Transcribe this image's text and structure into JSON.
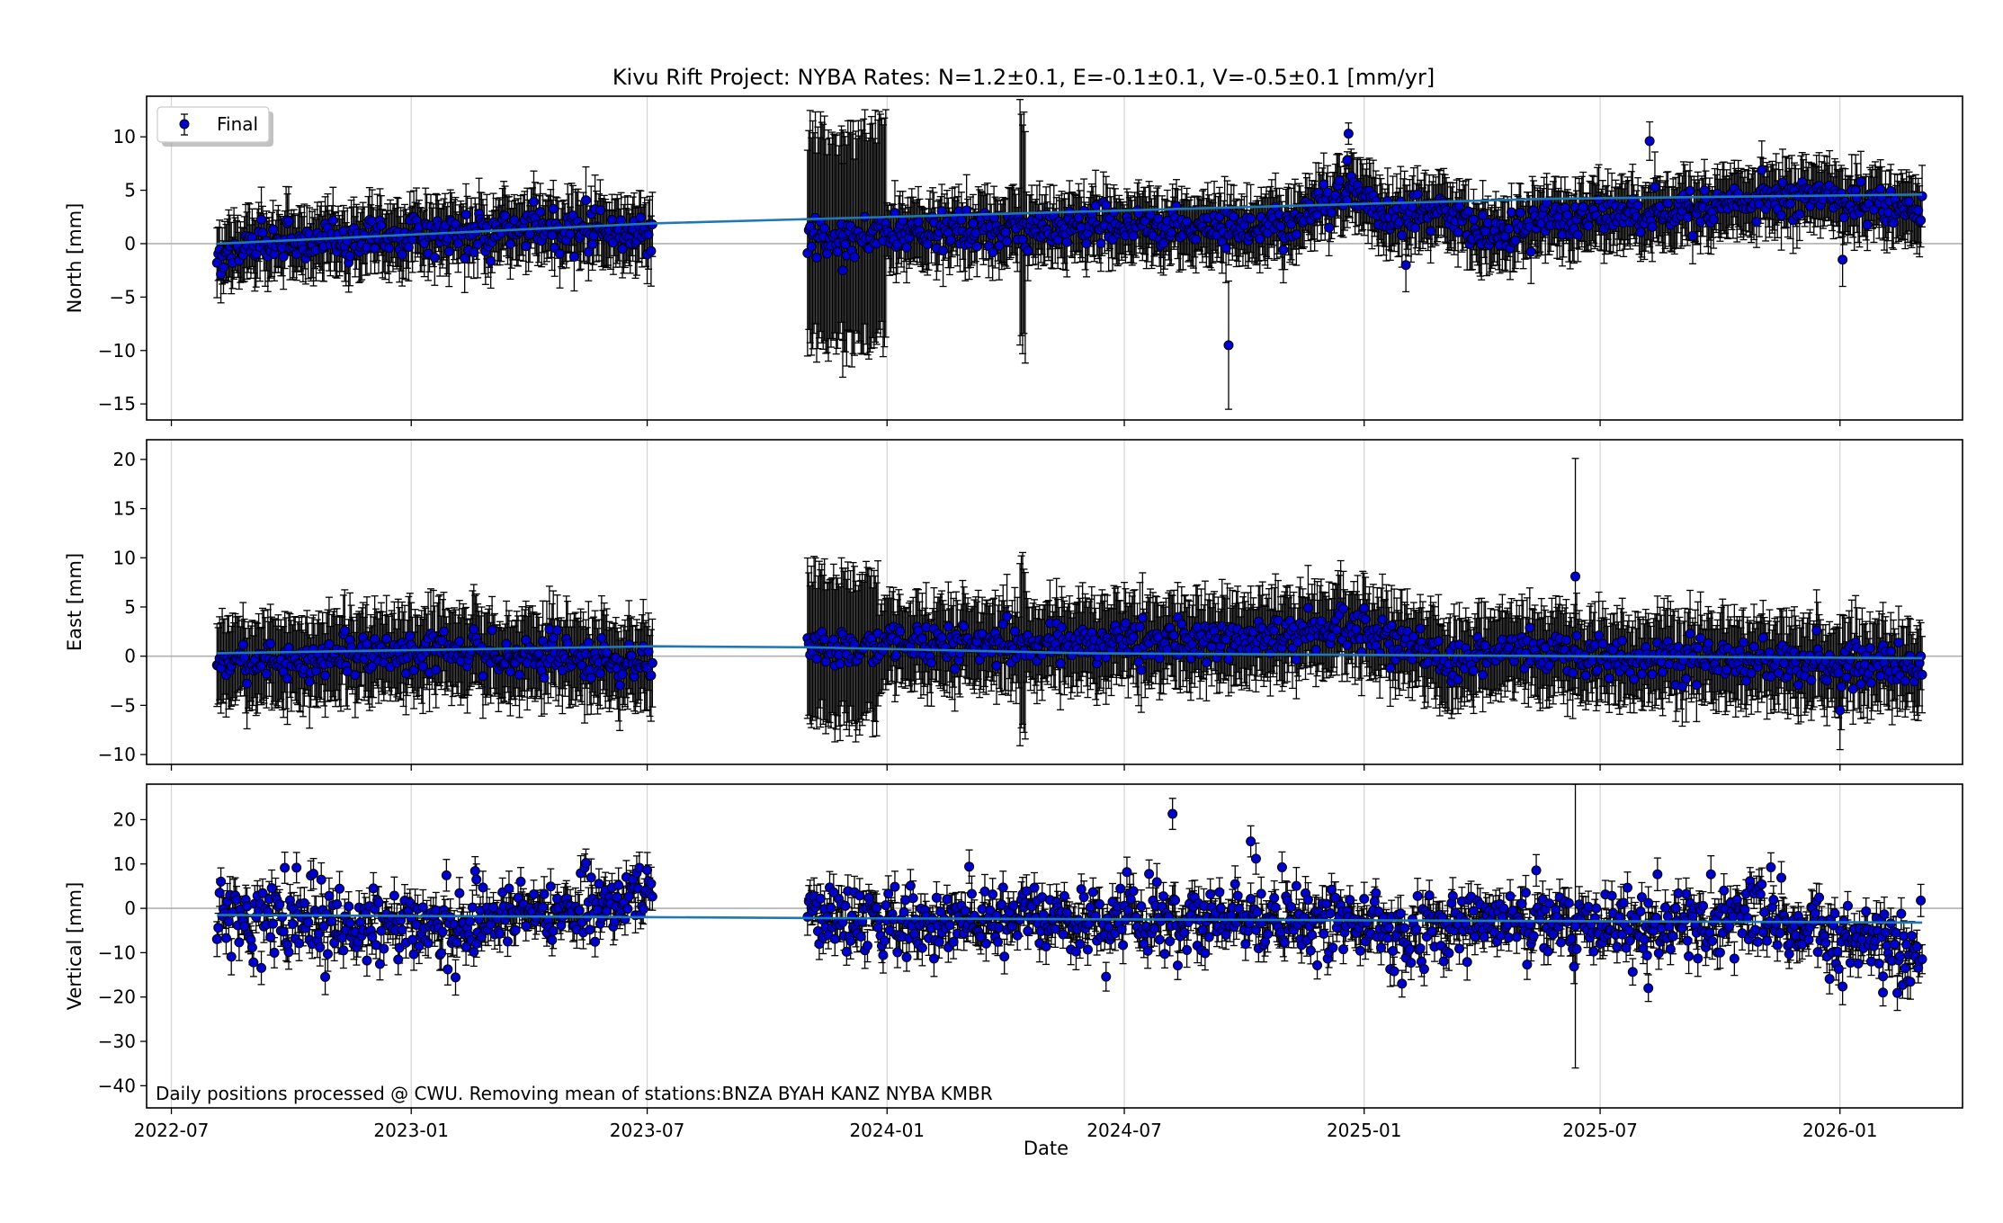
{
  "chart_data": {
    "type": "scatter",
    "title": "Kivu Rift Project: NYBA  Rates: N=1.2±0.1, E=-0.1±0.1, V=-0.5±0.1 [mm/yr]",
    "xlabel": "Date",
    "x_ticks": [
      "2022-07",
      "2023-01",
      "2023-07",
      "2024-01",
      "2024-07",
      "2025-01",
      "2025-07",
      "2026-01"
    ],
    "xlim": [
      "2022-06-12",
      "2026-04-05"
    ],
    "grid": true,
    "legend": {
      "position": "top-left",
      "entries": [
        "Final"
      ]
    },
    "footnote": "Daily positions processed @ CWU. Removing mean of stations:BNZA BYAH KANZ NYBA KMBR",
    "colors": {
      "marker_fill": "#0000cc",
      "marker_edge": "#000000",
      "error_bar": "#000000",
      "fit_line": "#1f77b4",
      "zero_line": "#b0b0b0",
      "grid": "#d3d3d3"
    },
    "segments": [
      {
        "start": "2022-08-05",
        "end": "2023-07-05"
      },
      {
        "start": "2023-11-01",
        "end": "2026-03-05"
      }
    ],
    "panels": [
      {
        "name": "north",
        "ylabel": "North [mm]",
        "ylim": [
          -16.5,
          13.8
        ],
        "yticks": [
          -15,
          -10,
          -5,
          0,
          5,
          10
        ],
        "series": [
          {
            "name": "Final",
            "anchors": [
              [
                "2022-08-05",
                -1.2
              ],
              [
                "2022-09-15",
                0.3
              ],
              [
                "2022-12-01",
                0.6
              ],
              [
                "2023-03-01",
                1.2
              ],
              [
                "2023-05-01",
                1.4
              ],
              [
                "2023-07-05",
                0.8
              ],
              [
                "2023-11-01",
                0.5
              ],
              [
                "2024-01-01",
                0.9
              ],
              [
                "2024-06-01",
                1.6
              ],
              [
                "2024-10-15",
                1.5
              ],
              [
                "2024-11-20",
                2.8
              ],
              [
                "2024-12-20",
                5.3
              ],
              [
                "2025-01-20",
                2.2
              ],
              [
                "2025-03-01",
                3.2
              ],
              [
                "2025-04-01",
                0.8
              ],
              [
                "2025-05-20",
                2.2
              ],
              [
                "2025-07-01",
                2.8
              ],
              [
                "2025-10-01",
                3.6
              ],
              [
                "2025-12-20",
                4.5
              ],
              [
                "2026-03-05",
                3.2
              ]
            ],
            "noise_sd": 0.9,
            "typical_error": 2.8,
            "large_error_ranges": [
              {
                "start": "2023-11-01",
                "end": "2023-12-31",
                "error": 10.0
              },
              {
                "start": "2024-04-12",
                "end": "2024-04-16",
                "error": 10.5
              }
            ],
            "outliers": [
              {
                "x": "2024-09-19",
                "y": -9.5,
                "err": 6.0
              },
              {
                "x": "2024-12-20",
                "y": 10.3,
                "err": 1.0
              },
              {
                "x": "2024-12-19",
                "y": 7.8,
                "err": 0.8
              },
              {
                "x": "2025-08-08",
                "y": 9.6,
                "err": 1.8
              },
              {
                "x": "2025-02-02",
                "y": -2.0,
                "err": 2.5
              },
              {
                "x": "2023-11-28",
                "y": -2.5,
                "err": 10.0
              },
              {
                "x": "2026-01-03",
                "y": -1.5,
                "err": 2.5
              }
            ]
          },
          {
            "name": "fit",
            "points": [
              [
                "2022-08-05",
                0.0
              ],
              [
                "2023-07-05",
                1.9
              ],
              [
                "2025-05-20",
                4.2
              ],
              [
                "2026-03-05",
                4.6
              ]
            ]
          }
        ]
      },
      {
        "name": "east",
        "ylabel": "East [mm]",
        "ylim": [
          -11,
          22
        ],
        "yticks": [
          -10,
          -5,
          0,
          5,
          10,
          15,
          20
        ],
        "series": [
          {
            "name": "Final",
            "anchors": [
              [
                "2022-08-05",
                -0.5
              ],
              [
                "2022-10-01",
                -0.5
              ],
              [
                "2023-01-01",
                0.5
              ],
              [
                "2023-04-01",
                0.4
              ],
              [
                "2023-07-05",
                -0.8
              ],
              [
                "2023-11-01",
                0.8
              ],
              [
                "2024-03-01",
                1.2
              ],
              [
                "2024-07-01",
                1.5
              ],
              [
                "2024-11-01",
                1.8
              ],
              [
                "2024-12-15",
                3.2
              ],
              [
                "2025-01-10",
                2.0
              ],
              [
                "2025-03-01",
                -0.5
              ],
              [
                "2025-05-01",
                0.5
              ],
              [
                "2025-07-01",
                0.0
              ],
              [
                "2025-10-01",
                -0.3
              ],
              [
                "2026-03-05",
                -1.2
              ]
            ],
            "noise_sd": 1.0,
            "typical_error": 4.0,
            "large_error_ranges": [
              {
                "start": "2023-11-01",
                "end": "2023-12-25",
                "error": 7.5
              },
              {
                "start": "2024-04-12",
                "end": "2024-04-16",
                "error": 9.0
              }
            ],
            "outliers": [
              {
                "x": "2025-06-12",
                "y": 8.1,
                "err": 12.0
              },
              {
                "x": "2026-01-01",
                "y": -5.5,
                "err": 4.0
              }
            ]
          },
          {
            "name": "fit",
            "points": [
              [
                "2022-08-05",
                0.3
              ],
              [
                "2023-07-05",
                1.0
              ],
              [
                "2023-11-01",
                0.9
              ],
              [
                "2024-06-01",
                0.3
              ],
              [
                "2026-03-05",
                -0.2
              ]
            ]
          }
        ]
      },
      {
        "name": "vertical",
        "ylabel": "Vertical [mm]",
        "ylim": [
          -45,
          28
        ],
        "yticks": [
          -40,
          -30,
          -20,
          -10,
          0,
          10,
          20
        ],
        "series": [
          {
            "name": "Final",
            "anchors": [
              [
                "2022-08-05",
                -1.5
              ],
              [
                "2022-10-01",
                -2.5
              ],
              [
                "2022-12-01",
                -4.5
              ],
              [
                "2023-03-01",
                -3.5
              ],
              [
                "2023-05-01",
                0.0
              ],
              [
                "2023-07-05",
                3.5
              ],
              [
                "2023-11-01",
                -2.0
              ],
              [
                "2024-02-01",
                -3.0
              ],
              [
                "2024-06-01",
                -2.5
              ],
              [
                "2024-09-01",
                -2.0
              ],
              [
                "2024-12-01",
                -3.0
              ],
              [
                "2025-02-01",
                -6.0
              ],
              [
                "2025-05-01",
                -2.0
              ],
              [
                "2025-08-01",
                -5.0
              ],
              [
                "2025-11-01",
                -2.0
              ],
              [
                "2026-03-05",
                -9.0
              ]
            ],
            "noise_sd": 4.0,
            "typical_error": 3.5,
            "large_error_ranges": [],
            "outliers": [
              {
                "x": "2024-08-07",
                "y": 21.3,
                "err": 3.5
              },
              {
                "x": "2024-10-06",
                "y": 15.1,
                "err": 3.5
              },
              {
                "x": "2024-10-10",
                "y": 11.2,
                "err": 3.5
              },
              {
                "x": "2025-06-12",
                "y": -4.0,
                "err": 32.0
              },
              {
                "x": "2025-08-07",
                "y": -18.0,
                "err": 3.0
              },
              {
                "x": "2026-02-03",
                "y": -19.0,
                "err": 3.0
              },
              {
                "x": "2025-01-30",
                "y": -17.0,
                "err": 3.0
              },
              {
                "x": "2023-02-20",
                "y": 6.5,
                "err": 3.5
              }
            ]
          },
          {
            "name": "fit",
            "points": [
              [
                "2022-08-05",
                -1.5
              ],
              [
                "2023-07-05",
                -2.0
              ],
              [
                "2023-11-01",
                -2.2
              ],
              [
                "2026-03-05",
                -3.2
              ]
            ]
          }
        ]
      }
    ]
  }
}
